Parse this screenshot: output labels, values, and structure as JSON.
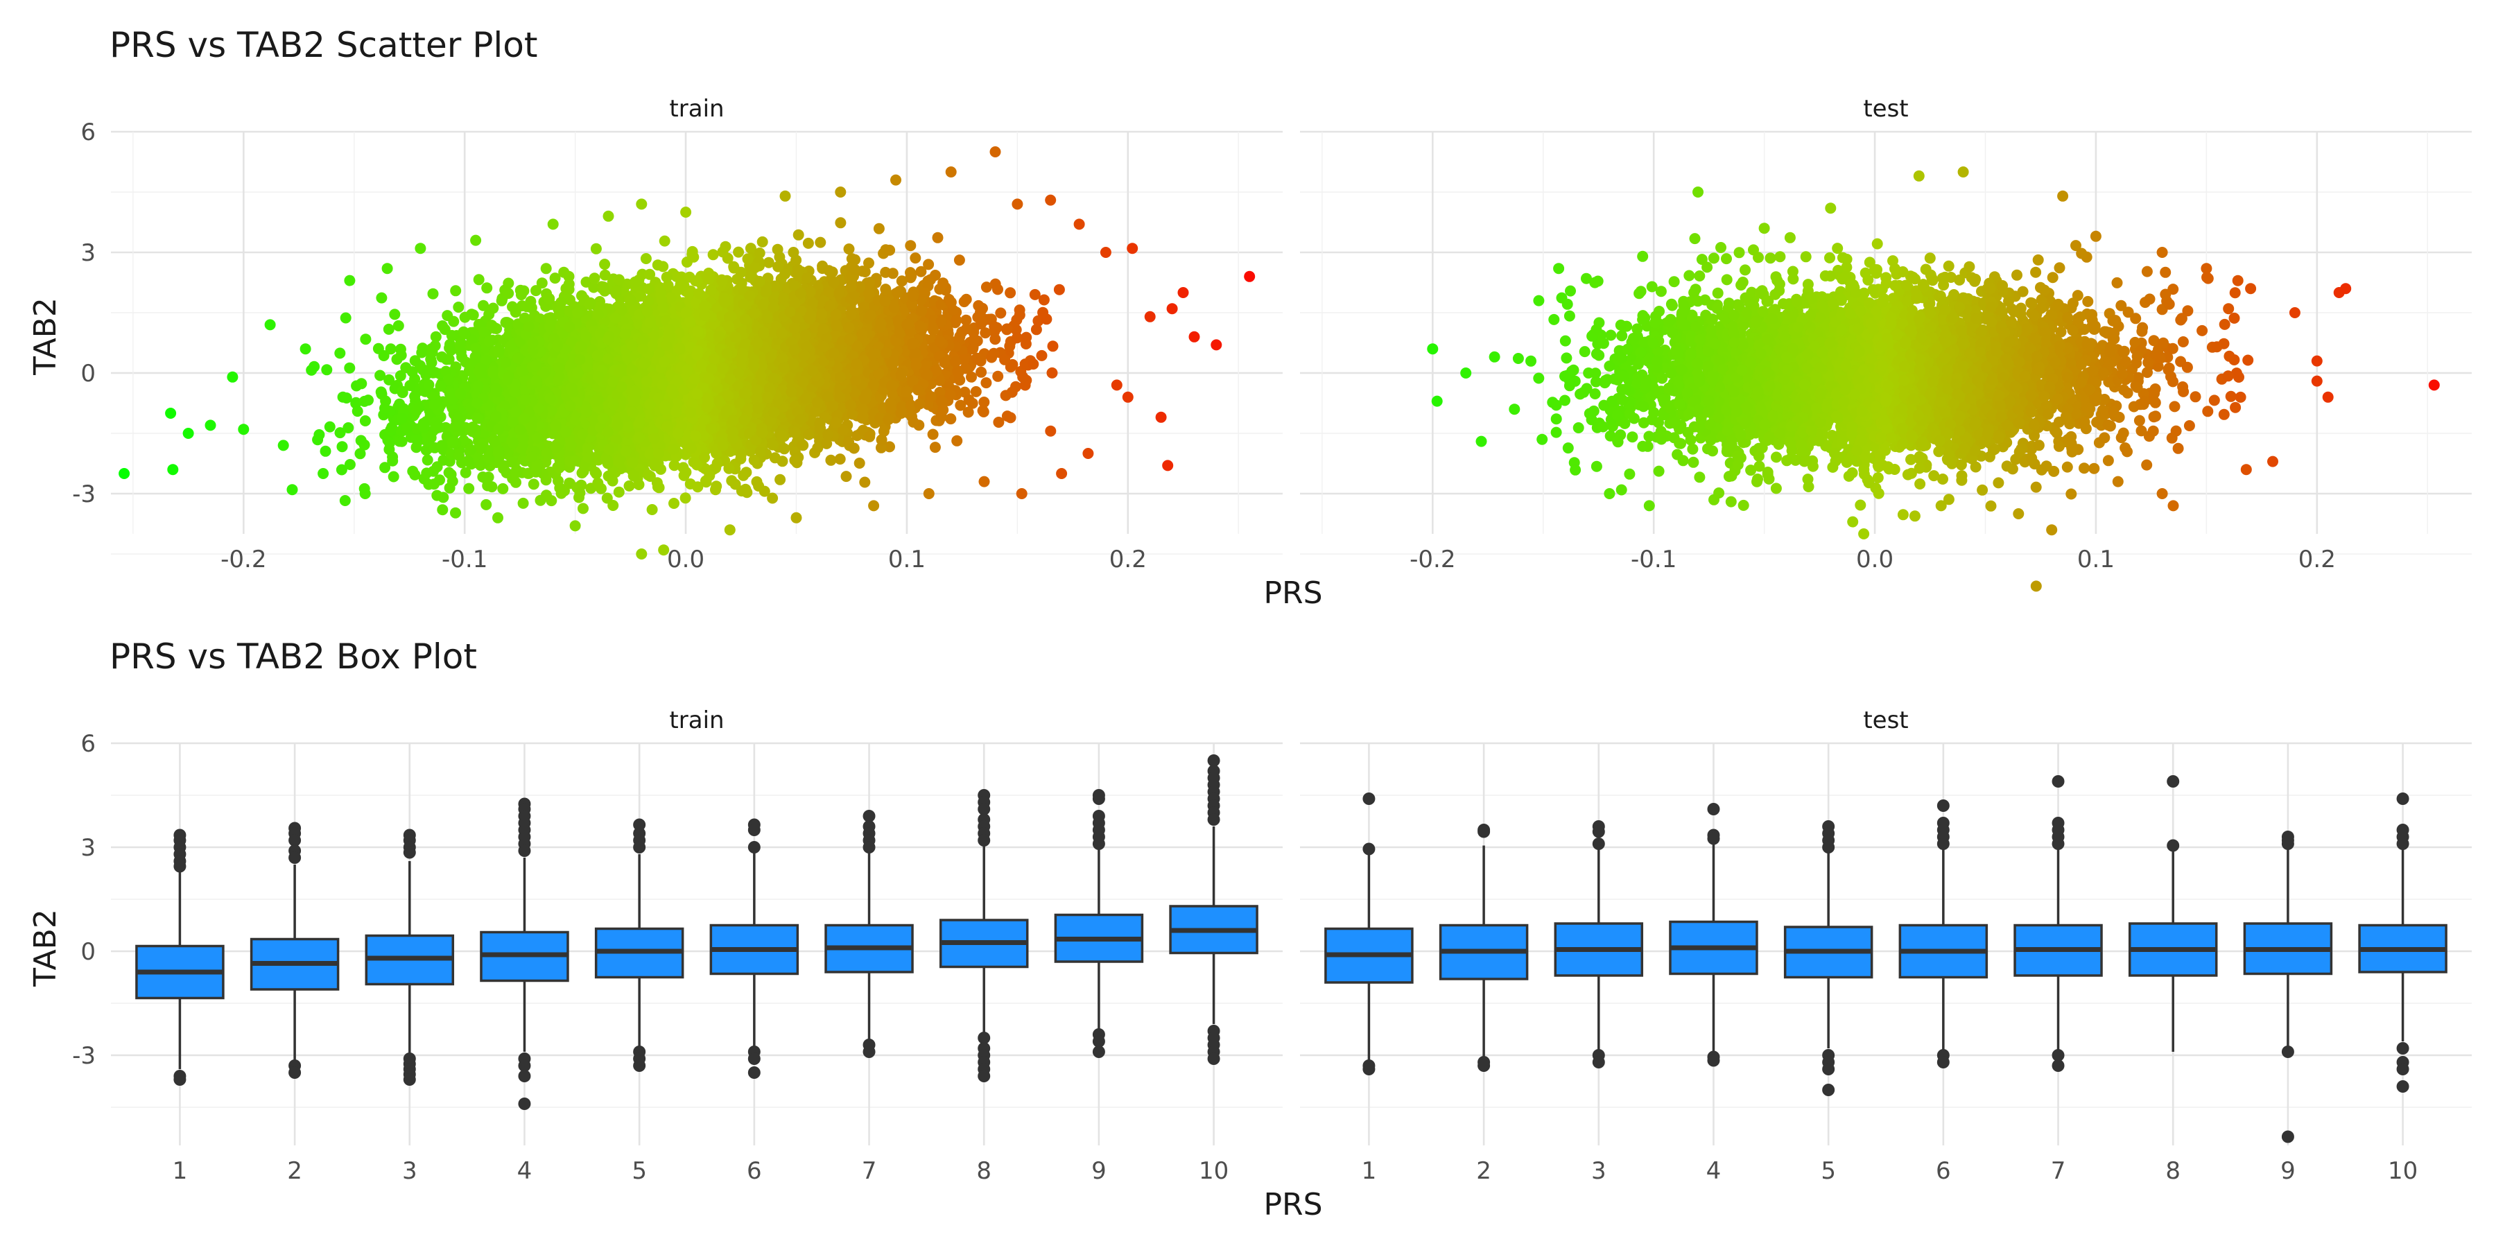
{
  "chart_data": [
    {
      "type": "scatter",
      "title": "PRS vs TAB2 Scatter Plot",
      "xlabel": "PRS",
      "ylabel": "TAB2",
      "facets": [
        "train",
        "test"
      ],
      "xlim": [
        -0.26,
        0.27
      ],
      "ylim": [
        -4.0,
        6.0
      ],
      "x_ticks": [
        -0.2,
        -0.1,
        0.0,
        0.1,
        0.2
      ],
      "x_tick_labels": [
        "-0.2",
        "-0.1",
        "0.0",
        "0.1",
        "0.2"
      ],
      "y_ticks": [
        -3,
        0,
        3,
        6
      ],
      "y_tick_labels": [
        "-3",
        "0",
        "3",
        "6"
      ],
      "color_low": "#00ff00",
      "color_mid": "#a8d000",
      "color_high": "#ff0000",
      "grid": true,
      "series": [
        {
          "facet": "train",
          "points": [
            [
              -0.254,
              -2.5
            ],
            [
              -0.232,
              -2.4
            ],
            [
              -0.233,
              -1.0
            ],
            [
              -0.225,
              -1.5
            ],
            [
              -0.215,
              -1.3
            ],
            [
              -0.205,
              -0.1
            ],
            [
              -0.2,
              -1.4
            ],
            [
              -0.188,
              1.2
            ],
            [
              -0.182,
              -1.8
            ],
            [
              -0.178,
              -2.9
            ],
            [
              -0.172,
              0.6
            ],
            [
              -0.164,
              -2.5
            ],
            [
              -0.152,
              2.3
            ],
            [
              -0.145,
              -3.0
            ],
            [
              -0.135,
              2.6
            ],
            [
              -0.12,
              3.1
            ],
            [
              -0.11,
              -3.4
            ],
            [
              -0.095,
              3.3
            ],
            [
              -0.085,
              -3.6
            ],
            [
              -0.06,
              3.7
            ],
            [
              -0.05,
              -3.8
            ],
            [
              -0.035,
              3.9
            ],
            [
              -0.02,
              4.2
            ],
            [
              -0.02,
              -4.5
            ],
            [
              -0.01,
              -4.4
            ],
            [
              0.0,
              4.0
            ],
            [
              0.02,
              -3.9
            ],
            [
              0.045,
              4.4
            ],
            [
              0.05,
              -3.6
            ],
            [
              0.07,
              4.5
            ],
            [
              0.085,
              -3.3
            ],
            [
              0.095,
              4.8
            ],
            [
              0.11,
              -3.0
            ],
            [
              0.12,
              5.0
            ],
            [
              0.14,
              5.5
            ],
            [
              0.135,
              -2.7
            ],
            [
              0.15,
              4.2
            ],
            [
              0.152,
              -3.0
            ],
            [
              0.165,
              4.3
            ],
            [
              0.17,
              -2.5
            ],
            [
              0.178,
              3.7
            ],
            [
              0.182,
              -2.0
            ],
            [
              0.19,
              3.0
            ],
            [
              0.195,
              -0.3
            ],
            [
              0.2,
              -0.6
            ],
            [
              0.202,
              3.1
            ],
            [
              0.21,
              1.4
            ],
            [
              0.215,
              -1.1
            ],
            [
              0.218,
              -2.3
            ],
            [
              0.22,
              1.6
            ],
            [
              0.225,
              2.0
            ],
            [
              0.23,
              0.9
            ],
            [
              0.24,
              0.7
            ],
            [
              0.255,
              2.4
            ]
          ]
        },
        {
          "facet": "test",
          "points": [
            [
              -0.2,
              0.6
            ],
            [
              -0.198,
              -0.7
            ],
            [
              -0.185,
              0.0
            ],
            [
              -0.178,
              -1.7
            ],
            [
              -0.172,
              0.4
            ],
            [
              -0.163,
              -0.9
            ],
            [
              -0.152,
              1.8
            ],
            [
              -0.143,
              2.6
            ],
            [
              -0.12,
              -3.0
            ],
            [
              -0.105,
              2.9
            ],
            [
              -0.102,
              -3.3
            ],
            [
              -0.08,
              4.5
            ],
            [
              -0.065,
              -3.2
            ],
            [
              -0.05,
              3.6
            ],
            [
              -0.02,
              4.1
            ],
            [
              -0.01,
              -3.7
            ],
            [
              -0.005,
              -4.0
            ],
            [
              0.02,
              4.9
            ],
            [
              0.03,
              -3.3
            ],
            [
              0.04,
              5.0
            ],
            [
              0.065,
              -3.5
            ],
            [
              0.073,
              -5.3
            ],
            [
              0.08,
              -3.9
            ],
            [
              0.085,
              4.4
            ],
            [
              0.1,
              3.4
            ],
            [
              0.11,
              -2.7
            ],
            [
              0.13,
              -3.0
            ],
            [
              0.13,
              3.0
            ],
            [
              0.135,
              -3.3
            ],
            [
              0.15,
              2.6
            ],
            [
              0.16,
              1.6
            ],
            [
              0.168,
              -2.4
            ],
            [
              0.17,
              2.1
            ],
            [
              0.18,
              -2.2
            ],
            [
              0.19,
              1.5
            ],
            [
              0.2,
              0.3
            ],
            [
              0.2,
              -0.2
            ],
            [
              0.205,
              -0.6
            ],
            [
              0.21,
              2.0
            ],
            [
              0.213,
              2.1
            ],
            [
              0.253,
              -0.3
            ]
          ]
        }
      ]
    },
    {
      "type": "box",
      "title": "PRS vs TAB2 Box Plot",
      "xlabel": "PRS",
      "ylabel": "TAB2",
      "facets": [
        "train",
        "test"
      ],
      "categories": [
        "1",
        "2",
        "3",
        "4",
        "5",
        "6",
        "7",
        "8",
        "9",
        "10"
      ],
      "ylim": [
        -5.6,
        6.0
      ],
      "y_ticks": [
        -3,
        0,
        3,
        6
      ],
      "y_tick_labels": [
        "-3",
        "0",
        "3",
        "6"
      ],
      "box_color": "#1e90ff",
      "grid": true,
      "series": [
        {
          "facet": "train",
          "boxes": [
            {
              "q1": -1.35,
              "median": -0.6,
              "q3": 0.15,
              "lower": -3.4,
              "upper": 2.3,
              "outliers": [
                3.35,
                3.2,
                3.0,
                2.8,
                2.6,
                2.45,
                -3.6,
                -3.7
              ]
            },
            {
              "q1": -1.1,
              "median": -0.35,
              "q3": 0.35,
              "lower": -3.2,
              "upper": 2.5,
              "outliers": [
                3.55,
                3.4,
                3.2,
                2.9,
                2.7,
                -3.3,
                -3.5
              ]
            },
            {
              "q1": -0.95,
              "median": -0.2,
              "q3": 0.45,
              "lower": -3.0,
              "upper": 2.6,
              "outliers": [
                3.35,
                3.2,
                3.0,
                2.85,
                -3.1,
                -3.25,
                -3.4,
                -3.55,
                -3.7
              ]
            },
            {
              "q1": -0.85,
              "median": -0.1,
              "q3": 0.55,
              "lower": -2.9,
              "upper": 2.7,
              "outliers": [
                4.25,
                4.1,
                3.9,
                3.7,
                3.5,
                3.3,
                3.1,
                2.9,
                -3.1,
                -3.3,
                -3.6,
                -4.4
              ]
            },
            {
              "q1": -0.75,
              "median": 0.0,
              "q3": 0.65,
              "lower": -2.8,
              "upper": 2.8,
              "outliers": [
                3.65,
                3.4,
                3.2,
                3.0,
                -2.9,
                -3.1,
                -3.3
              ]
            },
            {
              "q1": -0.65,
              "median": 0.05,
              "q3": 0.75,
              "lower": -2.8,
              "upper": 2.85,
              "outliers": [
                3.65,
                3.5,
                3.0,
                -2.9,
                -3.1,
                -3.5
              ]
            },
            {
              "q1": -0.6,
              "median": 0.1,
              "q3": 0.75,
              "lower": -2.6,
              "upper": 2.9,
              "outliers": [
                3.9,
                3.6,
                3.4,
                3.2,
                3.0,
                -2.7,
                -2.9
              ]
            },
            {
              "q1": -0.45,
              "median": 0.25,
              "q3": 0.9,
              "lower": -2.4,
              "upper": 3.1,
              "outliers": [
                4.5,
                4.3,
                4.1,
                3.8,
                3.6,
                3.4,
                3.2,
                -2.5,
                -2.8,
                -3.0,
                -3.2,
                -3.4,
                -3.6
              ]
            },
            {
              "q1": -0.3,
              "median": 0.35,
              "q3": 1.05,
              "lower": -2.3,
              "upper": 3.0,
              "outliers": [
                4.5,
                4.4,
                3.9,
                3.7,
                3.5,
                3.3,
                3.1,
                -2.4,
                -2.6,
                -2.9
              ]
            },
            {
              "q1": -0.05,
              "median": 0.6,
              "q3": 1.3,
              "lower": -2.1,
              "upper": 3.6,
              "outliers": [
                5.5,
                5.2,
                5.0,
                4.8,
                4.6,
                4.4,
                4.2,
                4.0,
                3.8,
                -2.3,
                -2.5,
                -2.7,
                -2.9,
                -3.1
              ]
            }
          ]
        },
        {
          "facet": "test",
          "boxes": [
            {
              "q1": -0.9,
              "median": -0.1,
              "q3": 0.65,
              "lower": -3.2,
              "upper": 2.8,
              "outliers": [
                4.4,
                2.95,
                -3.3,
                -3.4
              ]
            },
            {
              "q1": -0.8,
              "median": 0.0,
              "q3": 0.75,
              "lower": -3.1,
              "upper": 3.05,
              "outliers": [
                3.5,
                3.45,
                -3.2,
                -3.3
              ]
            },
            {
              "q1": -0.7,
              "median": 0.05,
              "q3": 0.8,
              "lower": -2.9,
              "upper": 3.0,
              "outliers": [
                3.6,
                3.45,
                3.1,
                -3.0,
                -3.2
              ]
            },
            {
              "q1": -0.65,
              "median": 0.1,
              "q3": 0.85,
              "lower": -2.9,
              "upper": 3.1,
              "outliers": [
                4.1,
                3.35,
                3.25,
                -3.05,
                -3.15
              ]
            },
            {
              "q1": -0.75,
              "median": 0.0,
              "q3": 0.7,
              "lower": -2.8,
              "upper": 2.9,
              "outliers": [
                3.6,
                3.4,
                3.2,
                3.0,
                -3.0,
                -3.2,
                -3.4,
                -4.0
              ]
            },
            {
              "q1": -0.75,
              "median": 0.0,
              "q3": 0.75,
              "lower": -2.9,
              "upper": 2.95,
              "outliers": [
                4.2,
                3.7,
                3.5,
                3.3,
                3.1,
                -3.0,
                -3.2
              ]
            },
            {
              "q1": -0.7,
              "median": 0.05,
              "q3": 0.75,
              "lower": -2.9,
              "upper": 3.0,
              "outliers": [
                4.9,
                3.7,
                3.5,
                3.3,
                3.1,
                -3.0,
                -3.3
              ]
            },
            {
              "q1": -0.7,
              "median": 0.05,
              "q3": 0.8,
              "lower": -2.9,
              "upper": 3.0,
              "outliers": [
                4.9,
                3.05
              ]
            },
            {
              "q1": -0.65,
              "median": 0.05,
              "q3": 0.8,
              "lower": -2.75,
              "upper": 2.95,
              "outliers": [
                3.3,
                3.2,
                3.1,
                -2.9,
                -5.35
              ]
            },
            {
              "q1": -0.6,
              "median": 0.05,
              "q3": 0.75,
              "lower": -2.6,
              "upper": 3.0,
              "outliers": [
                4.4,
                3.5,
                3.3,
                3.1,
                -2.8,
                -3.2,
                -3.4,
                -3.9
              ]
            }
          ]
        }
      ]
    }
  ]
}
